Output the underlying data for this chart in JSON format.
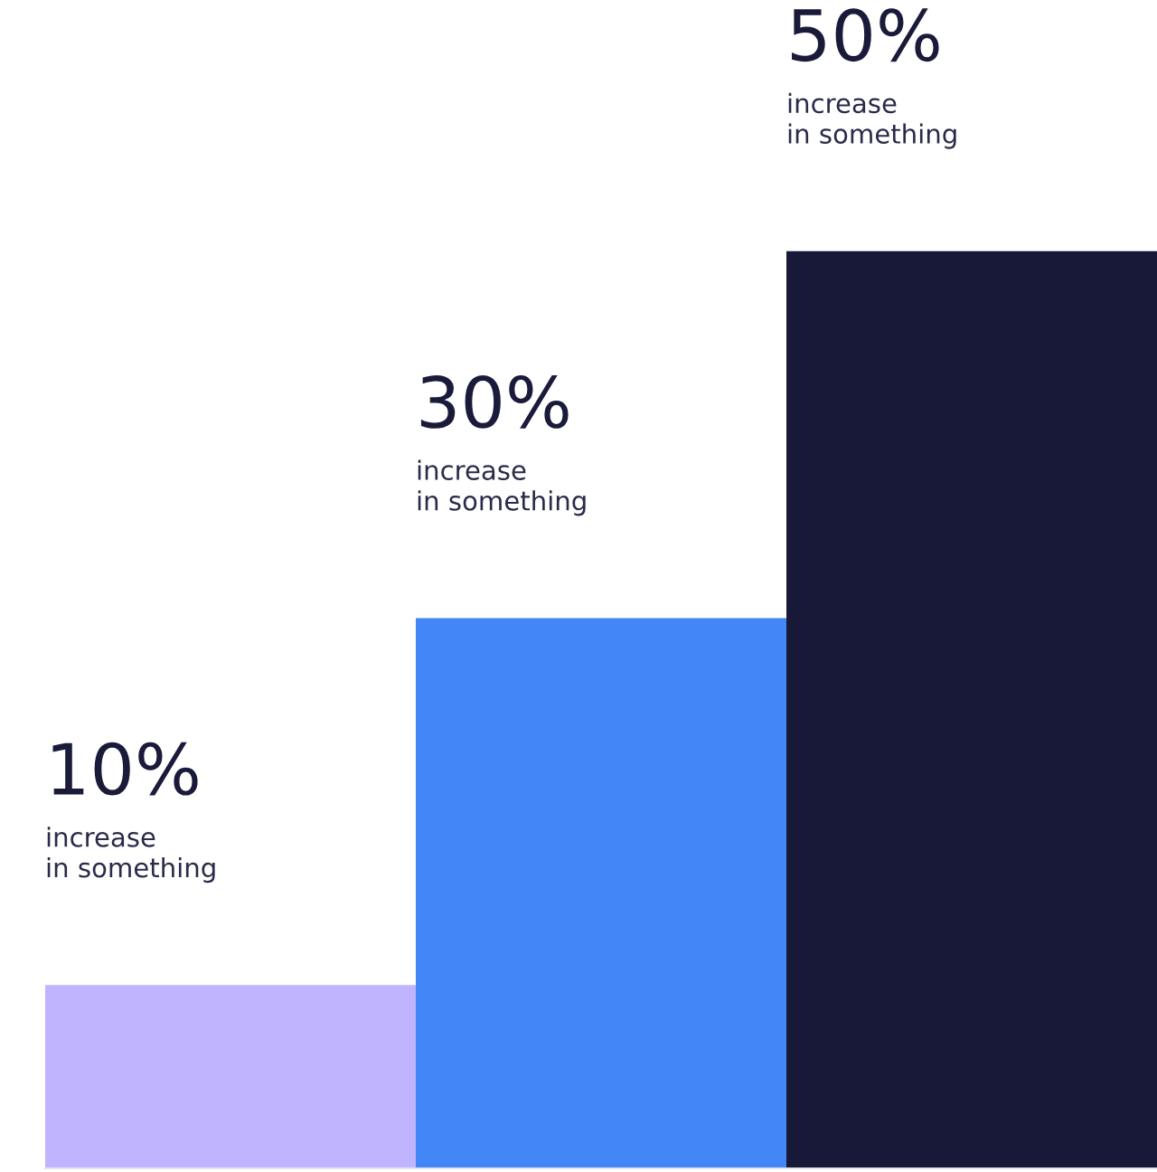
{
  "chart_data": {
    "type": "bar",
    "categories": [
      null,
      null,
      null
    ],
    "values": [
      10,
      30,
      50
    ],
    "colors": [
      "#c0b3ff",
      "#4287f5",
      "#181838"
    ],
    "value_labels": [
      "10%\nincrease\nin something",
      "30%\nincrease\nin something",
      "50%\nincrease\nin something"
    ]
  }
}
